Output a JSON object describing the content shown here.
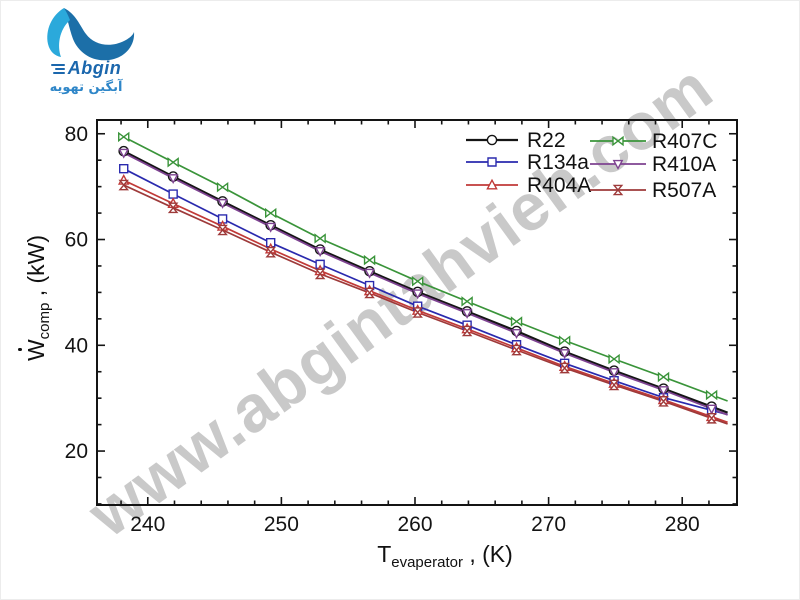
{
  "logo": {
    "brand": "Abgin",
    "brand_fa": "آبگین تهویه",
    "colors": {
      "wave_light": "#2BA9DB",
      "wave_dark": "#1C6FA8",
      "text_en": "#1B67AD",
      "text_fa": "#2E86C8"
    }
  },
  "watermark": {
    "text": "www.abgintahvieh.com",
    "color": "#949494"
  },
  "chart_data": {
    "type": "line",
    "title": "",
    "x_title": {
      "prefix": "T",
      "sub": "evaperator",
      "suffix": " , (K)"
    },
    "y_title": {
      "prefix": "W",
      "has_overdot": true,
      "sub": "comp",
      "suffix": " , (kW)"
    },
    "xlabel": "T_evaperator , (K)",
    "ylabel": "Wdot_comp , (kW)",
    "xlim": [
      236.2,
      284.1
    ],
    "ylim": [
      9.8,
      82.6
    ],
    "grid": false,
    "x_major_ticks": [
      240,
      250,
      260,
      270,
      280
    ],
    "x_minor_step": 2,
    "y_major_ticks": [
      20,
      40,
      60,
      80
    ],
    "y_minor_step": 5,
    "frame": "full-box-ticks-all-sides",
    "legend_position": "top-right-inside",
    "legend_columns": [
      [
        "R22",
        "R134a",
        "R404A"
      ],
      [
        "R407C",
        "R410A",
        "R507A"
      ]
    ],
    "x": [
      238.2,
      241.9,
      245.6,
      249.2,
      252.9,
      256.6,
      260.2,
      263.9,
      267.6,
      271.2,
      274.9,
      278.6,
      282.2
    ],
    "series": [
      {
        "name": "R22",
        "color": "#151515",
        "marker": "circle",
        "width": 2.2,
        "values": [
          76.7,
          71.9,
          67.2,
          62.7,
          58.1,
          54.0,
          50.1,
          46.4,
          42.7,
          38.8,
          35.2,
          31.8,
          28.4
        ]
      },
      {
        "name": "R134a",
        "color": "#2A2AAE",
        "marker": "square",
        "width": 1.7,
        "values": [
          73.4,
          68.6,
          63.9,
          59.4,
          55.3,
          51.3,
          47.4,
          43.8,
          40.1,
          36.6,
          33.3,
          30.1,
          27.7
        ]
      },
      {
        "name": "R404A",
        "color": "#C13A38",
        "marker": "triangle-up",
        "width": 1.7,
        "values": [
          71.2,
          66.8,
          62.5,
          58.2,
          54.1,
          50.3,
          46.6,
          43.1,
          39.5,
          36.0,
          32.8,
          29.7,
          26.5
        ]
      },
      {
        "name": "R407C",
        "color": "#3A943A",
        "marker": "bowtie-h",
        "width": 1.7,
        "values": [
          79.4,
          74.6,
          69.9,
          65.0,
          60.2,
          56.1,
          52.1,
          48.3,
          44.5,
          40.9,
          37.4,
          34.0,
          30.6
        ]
      },
      {
        "name": "R410A",
        "color": "#7E4391",
        "marker": "triangle-down",
        "width": 1.8,
        "values": [
          76.4,
          71.6,
          66.9,
          62.4,
          57.8,
          53.7,
          49.8,
          46.1,
          42.3,
          38.5,
          34.9,
          31.5,
          28.0
        ]
      },
      {
        "name": "R507A",
        "color": "#9E3A3A",
        "marker": "bowtie-v",
        "width": 1.7,
        "values": [
          70.3,
          66.0,
          61.8,
          57.6,
          53.5,
          49.9,
          46.2,
          42.7,
          39.1,
          35.7,
          32.5,
          29.4,
          26.2
        ]
      }
    ]
  }
}
